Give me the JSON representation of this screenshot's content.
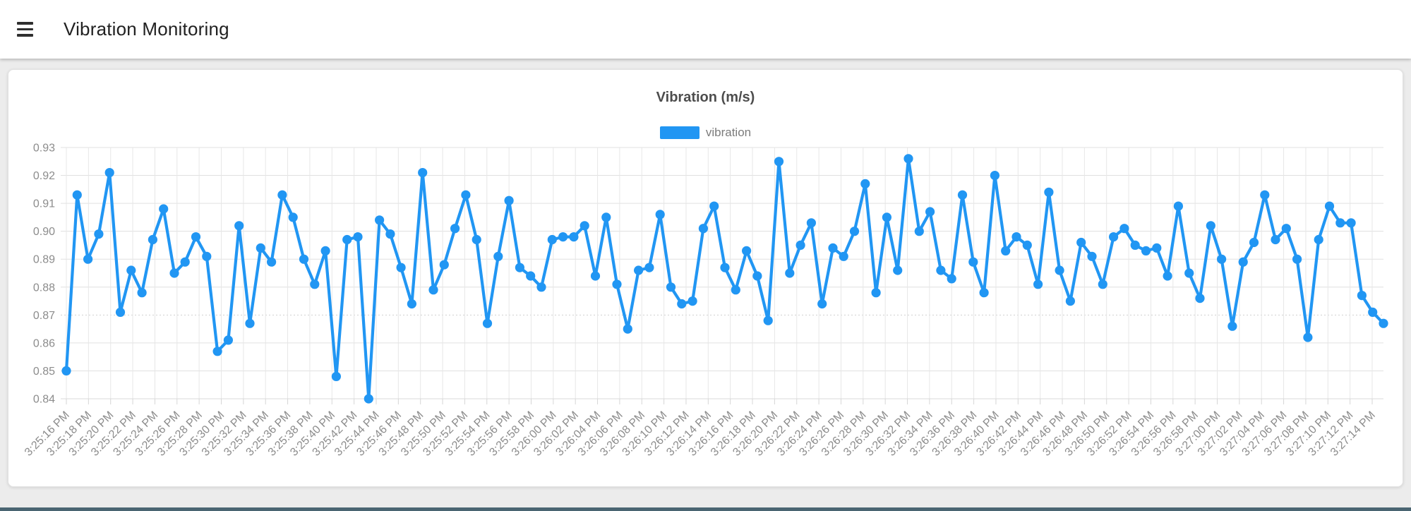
{
  "header": {
    "title": "Vibration Monitoring"
  },
  "chart_data": {
    "type": "line",
    "title": "Vibration (m/s)",
    "legend_position": "top",
    "grid": true,
    "ylim": [
      0.84,
      0.93
    ],
    "y_tick_labels": [
      "0.93",
      "0.92",
      "0.91",
      "0.90",
      "0.89",
      "0.88",
      "0.87",
      "0.86",
      "0.85",
      "0.84"
    ],
    "dashed_gridline_y": 0.87,
    "x_tick_labels": [
      "3:25:16 PM",
      "3:25:18 PM",
      "3:25:20 PM",
      "3:25:22 PM",
      "3:25:24 PM",
      "3:25:26 PM",
      "3:25:28 PM",
      "3:25:30 PM",
      "3:25:32 PM",
      "3:25:34 PM",
      "3:25:36 PM",
      "3:25:38 PM",
      "3:25:40 PM",
      "3:25:42 PM",
      "3:25:44 PM",
      "3:25:46 PM",
      "3:25:48 PM",
      "3:25:50 PM",
      "3:25:52 PM",
      "3:25:54 PM",
      "3:25:56 PM",
      "3:25:58 PM",
      "3:26:00 PM",
      "3:26:02 PM",
      "3:26:04 PM",
      "3:26:06 PM",
      "3:26:08 PM",
      "3:26:10 PM",
      "3:26:12 PM",
      "3:26:14 PM",
      "3:26:16 PM",
      "3:26:18 PM",
      "3:26:20 PM",
      "3:26:22 PM",
      "3:26:24 PM",
      "3:26:26 PM",
      "3:26:28 PM",
      "3:26:30 PM",
      "3:26:32 PM",
      "3:26:34 PM",
      "3:26:36 PM",
      "3:26:38 PM",
      "3:26:40 PM",
      "3:26:42 PM",
      "3:26:44 PM",
      "3:26:46 PM",
      "3:26:48 PM",
      "3:26:50 PM",
      "3:26:52 PM",
      "3:26:54 PM",
      "3:26:56 PM",
      "3:26:58 PM",
      "3:27:00 PM",
      "3:27:02 PM",
      "3:27:04 PM",
      "3:27:06 PM",
      "3:27:08 PM",
      "3:27:10 PM",
      "3:27:12 PM",
      "3:27:14 PM"
    ],
    "x_start": "3:25:16 PM",
    "x_end": "3:27:14 PM",
    "sample_interval_seconds": 1,
    "series": [
      {
        "name": "vibration",
        "color": "#2196f3",
        "values": [
          0.85,
          0.913,
          0.89,
          0.899,
          0.921,
          0.871,
          0.886,
          0.878,
          0.897,
          0.908,
          0.885,
          0.889,
          0.898,
          0.891,
          0.857,
          0.861,
          0.902,
          0.867,
          0.894,
          0.889,
          0.913,
          0.905,
          0.89,
          0.881,
          0.893,
          0.848,
          0.897,
          0.898,
          0.84,
          0.904,
          0.899,
          0.887,
          0.874,
          0.921,
          0.879,
          0.888,
          0.901,
          0.913,
          0.897,
          0.867,
          0.891,
          0.911,
          0.887,
          0.884,
          0.88,
          0.897,
          0.898,
          0.898,
          0.902,
          0.884,
          0.905,
          0.881,
          0.865,
          0.886,
          0.887,
          0.906,
          0.88,
          0.874,
          0.875,
          0.901,
          0.909,
          0.887,
          0.879,
          0.893,
          0.884,
          0.868,
          0.925,
          0.885,
          0.895,
          0.903,
          0.874,
          0.894,
          0.891,
          0.9,
          0.917,
          0.878,
          0.905,
          0.886,
          0.926,
          0.9,
          0.907,
          0.886,
          0.883,
          0.913,
          0.889,
          0.878,
          0.92,
          0.893,
          0.898,
          0.895,
          0.881,
          0.914,
          0.886,
          0.875,
          0.896,
          0.891,
          0.881,
          0.898,
          0.901,
          0.895,
          0.893,
          0.894,
          0.884,
          0.909,
          0.885,
          0.876,
          0.902,
          0.89,
          0.866,
          0.889,
          0.896,
          0.913,
          0.897,
          0.901,
          0.89,
          0.862,
          0.897,
          0.909,
          0.903,
          0.903,
          0.877,
          0.871,
          0.867
        ]
      }
    ]
  },
  "footer": {
    "accent_color": "#4a6572"
  }
}
